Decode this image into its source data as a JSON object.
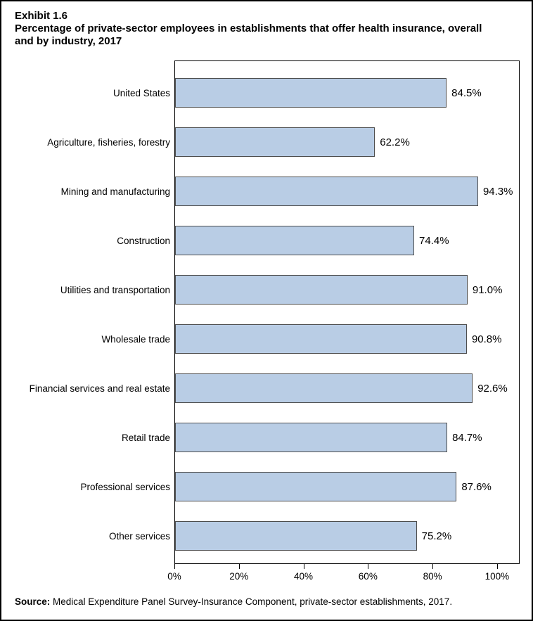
{
  "header": {
    "exhibit_label": "Exhibit 1.6",
    "title_lines": [
      "Percentage of private-sector employees in establishments that offer health insurance, overall",
      "and by industry, 2017"
    ]
  },
  "chart_data": {
    "type": "bar",
    "orientation": "horizontal",
    "title": "Percentage of private-sector employees in establishments that offer health insurance, overall and by industry, 2017",
    "xlabel": "",
    "ylabel": "",
    "grid": false,
    "legend": "none",
    "xlim": [
      0,
      107
    ],
    "categories": [
      "United States",
      "Agriculture, fisheries, forestry",
      "Mining and manufacturing",
      "Construction",
      "Utilities and transportation",
      "Wholesale trade",
      "Financial services and real estate",
      "Retail trade",
      "Professional services",
      "Other services"
    ],
    "values": [
      84.5,
      62.2,
      94.3,
      74.4,
      91.0,
      90.8,
      92.6,
      84.7,
      87.6,
      75.2
    ],
    "value_labels": [
      "84.5%",
      "62.2%",
      "94.3%",
      "74.4%",
      "91.0%",
      "90.8%",
      "92.6%",
      "84.7%",
      "87.6%",
      "75.2%"
    ],
    "xticks": [
      {
        "value": 0,
        "label": "0%"
      },
      {
        "value": 20,
        "label": "20%"
      },
      {
        "value": 40,
        "label": "40%"
      },
      {
        "value": 60,
        "label": "60%"
      },
      {
        "value": 80,
        "label": "80%"
      },
      {
        "value": 100,
        "label": "100%"
      }
    ],
    "colors": {
      "bar_fill": "#B9CDE5",
      "bar_border": "#4D4D4D",
      "axis": "#000000",
      "text": "#000000"
    }
  },
  "source": {
    "label": "Source:",
    "text": " Medical Expenditure Panel Survey-Insurance Component, private-sector establishments, 2017."
  }
}
